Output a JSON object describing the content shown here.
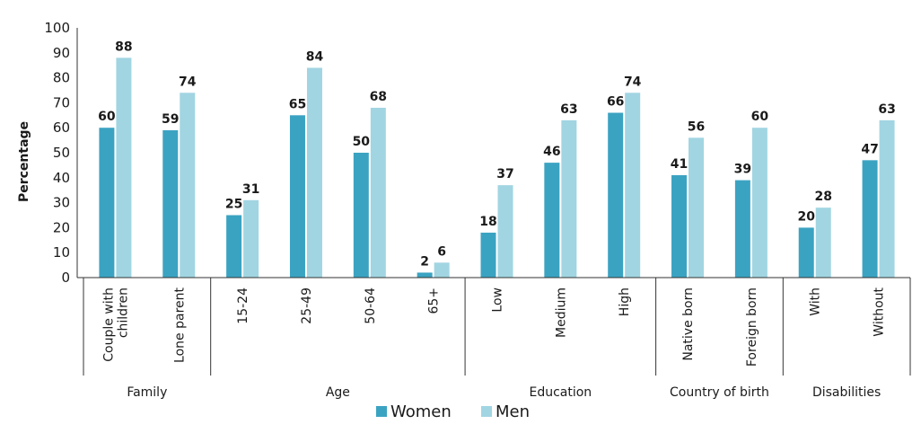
{
  "chart_data": {
    "type": "bar",
    "ylabel": "Percentage",
    "ylim": [
      0,
      100
    ],
    "yticks": [
      0,
      10,
      20,
      30,
      40,
      50,
      60,
      70,
      80,
      90,
      100
    ],
    "categories": [
      "Couple with children",
      "Lone parent",
      "15-24",
      "25-49",
      "50-64",
      "65+",
      "Low",
      "Medium",
      "High",
      "Native born",
      "Foreign born",
      "With",
      "Without"
    ],
    "category_lines": [
      [
        "Couple with",
        "children"
      ],
      [
        "Lone parent"
      ],
      [
        "15-24"
      ],
      [
        "25-49"
      ],
      [
        "50-64"
      ],
      [
        "65+"
      ],
      [
        "Low"
      ],
      [
        "Medium"
      ],
      [
        "High"
      ],
      [
        "Native born"
      ],
      [
        "Foreign born"
      ],
      [
        "With"
      ],
      [
        "Without"
      ]
    ],
    "groups": [
      {
        "label": "Family",
        "count": 2
      },
      {
        "label": "Age",
        "count": 4
      },
      {
        "label": "Education",
        "count": 3
      },
      {
        "label": "Country of birth",
        "count": 2
      },
      {
        "label": "Disabilities",
        "count": 2
      }
    ],
    "series": [
      {
        "name": "Women",
        "color": "#3ba3c2",
        "values": [
          60,
          59,
          25,
          65,
          50,
          2,
          18,
          46,
          66,
          41,
          39,
          20,
          47
        ]
      },
      {
        "name": "Men",
        "color": "#a1d5e2",
        "values": [
          88,
          74,
          31,
          84,
          68,
          6,
          37,
          63,
          74,
          56,
          60,
          28,
          63
        ]
      }
    ],
    "grid": false,
    "legend_position": "bottom"
  }
}
